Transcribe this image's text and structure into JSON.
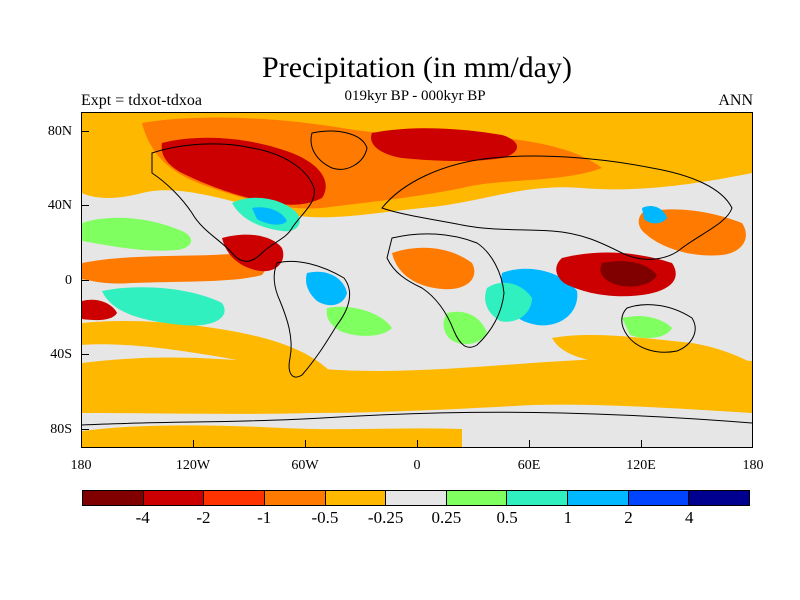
{
  "header": {
    "title": "Precipitation (in mm/day)",
    "subtitle": "019kyr BP - 000kyr BP",
    "experiment": "Expt = tdxot-tdxoa",
    "season": "ANN"
  },
  "axes": {
    "lat_labels": [
      "80N",
      "40N",
      "0",
      "40S",
      "80S"
    ],
    "lon_labels": [
      "180",
      "120W",
      "60W",
      "0",
      "60E",
      "120E",
      "180"
    ]
  },
  "colorbar": {
    "colors": [
      "#800000",
      "#cc0000",
      "#ff3300",
      "#ff7a00",
      "#ffb800",
      "#e6e6e6",
      "#80ff60",
      "#30f0c0",
      "#00b8ff",
      "#0044ff",
      "#000090"
    ],
    "labels": [
      "-4",
      "-2",
      "-1",
      "-0.5",
      "-0.25",
      "0.25",
      "0.5",
      "1",
      "2",
      "4"
    ]
  },
  "colors": {
    "background": "#e6e6e6",
    "coastline": "#000000"
  }
}
